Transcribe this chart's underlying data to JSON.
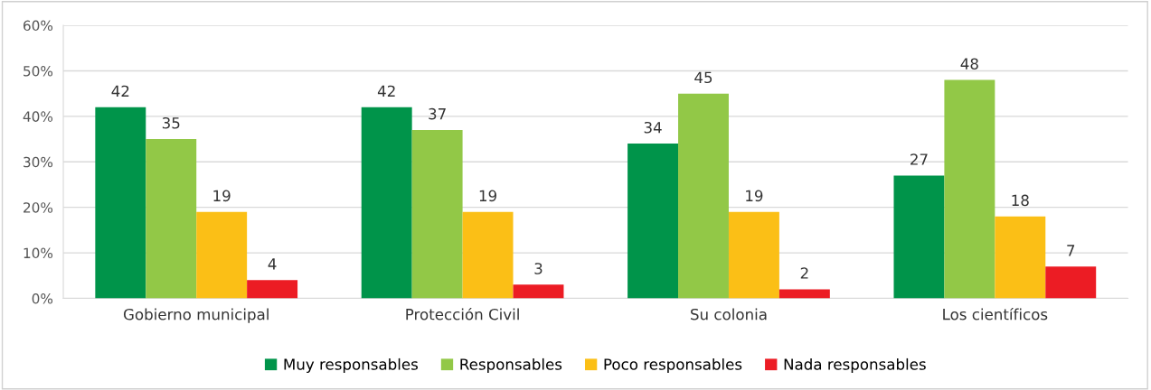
{
  "chart_data": {
    "type": "bar",
    "categories": [
      "Gobierno municipal",
      "Protección Civil",
      "Su colonia",
      "Los científicos"
    ],
    "series": [
      {
        "name": "Muy responsables",
        "color": "#00944a",
        "values": [
          42,
          42,
          34,
          27
        ]
      },
      {
        "name": "Responsables",
        "color": "#92c847",
        "values": [
          35,
          37,
          45,
          48
        ]
      },
      {
        "name": "Poco responsables",
        "color": "#fbbf16",
        "values": [
          19,
          19,
          19,
          18
        ]
      },
      {
        "name": "Nada responsables",
        "color": "#ec1c24",
        "values": [
          4,
          3,
          2,
          7
        ]
      }
    ],
    "ylim": [
      0,
      60
    ],
    "yticks": [
      {
        "value": 0,
        "label": "0%"
      },
      {
        "value": 10,
        "label": "10%"
      },
      {
        "value": 20,
        "label": "20%"
      },
      {
        "value": 30,
        "label": "30%"
      },
      {
        "value": 40,
        "label": "40%"
      },
      {
        "value": 50,
        "label": "50%"
      },
      {
        "value": 60,
        "label": "60%"
      }
    ],
    "grid": "y",
    "legend": "bottom",
    "data_labels": true
  }
}
